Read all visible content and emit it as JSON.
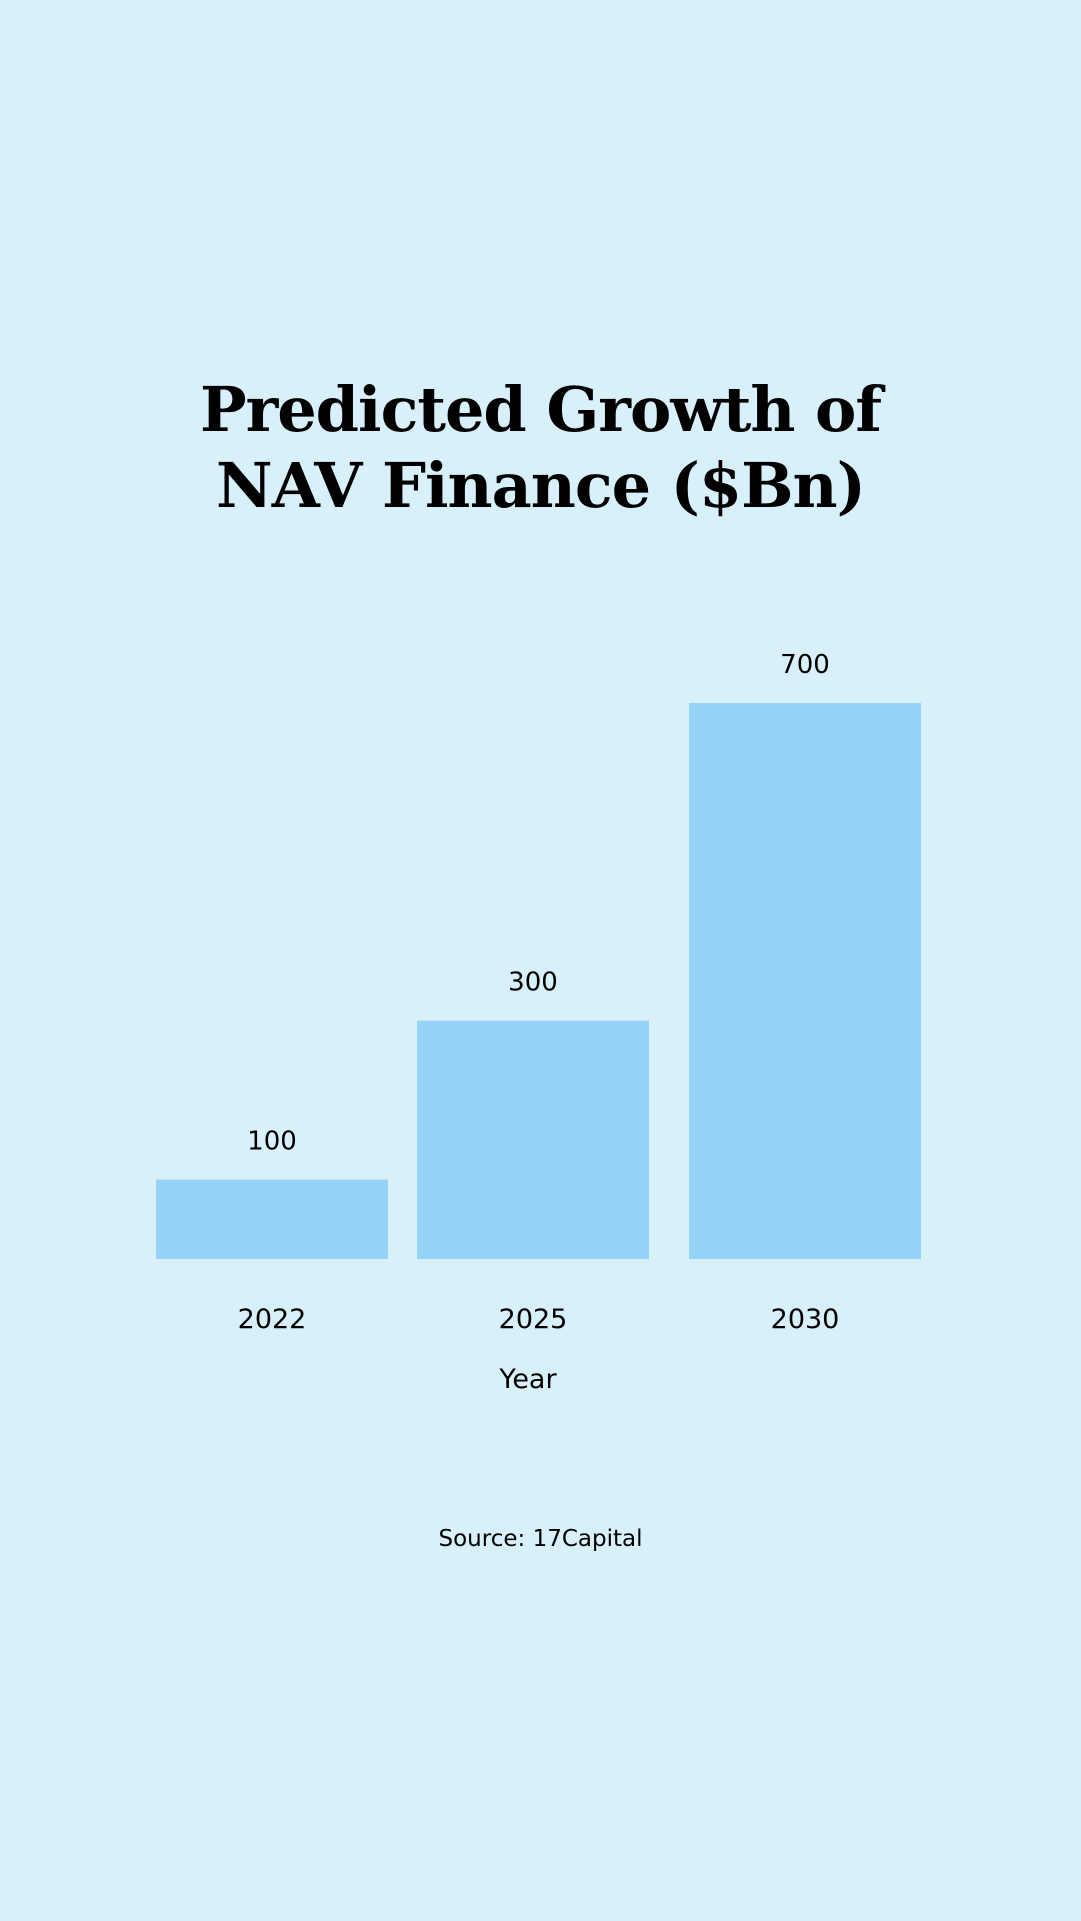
{
  "title_lines": [
    "Predicted Growth of",
    "NAV Finance ($Bn)"
  ],
  "source": "Source: 17Capital",
  "colors": {
    "background": "#d8f0fa",
    "bar": "#97d2f9",
    "text": "#000000"
  },
  "chart_data": {
    "type": "bar",
    "title": "Predicted Growth of NAV Finance ($Bn)",
    "categories": [
      "2022",
      "2025",
      "2030"
    ],
    "values": [
      100,
      300,
      700
    ],
    "data_labels": [
      "100",
      "300",
      "700"
    ],
    "xlabel": "Year",
    "ylabel": "",
    "ylim": [
      0,
      700
    ],
    "grid": false,
    "legend": "none"
  }
}
